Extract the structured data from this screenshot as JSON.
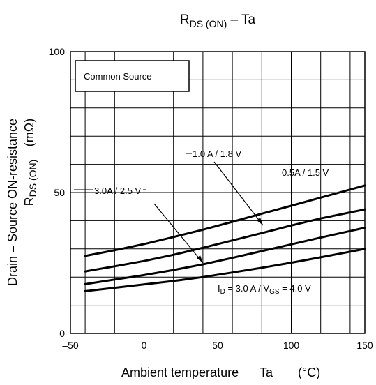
{
  "chart_data": {
    "type": "line",
    "title": {
      "main": "R",
      "sub": "DS (ON)",
      "rest": " – Ta"
    },
    "xlabel": {
      "text": "Ambient temperature",
      "symbol": "Ta",
      "unit": "(°C)"
    },
    "ylabel": {
      "line1": "Drain – Source ON-resistance",
      "line2_main": "R",
      "line2_sub": "DS (ON)",
      "line2_unit": "(mΩ)"
    },
    "xlim": [
      -50,
      150
    ],
    "ylim": [
      0,
      100
    ],
    "x_ticks": [
      -50,
      0,
      50,
      100,
      150
    ],
    "x_tick_labels": [
      "–50",
      "0",
      "50",
      "100",
      "150"
    ],
    "y_ticks": [
      0,
      50,
      100
    ],
    "y_tick_labels": [
      "0",
      "50",
      "100"
    ],
    "grid": true,
    "legend_box": "Common Source",
    "series": [
      {
        "name": "0.5A / 1.5 V",
        "x": [
          -40,
          -20,
          0,
          20,
          40,
          60,
          80,
          100,
          120,
          150
        ],
        "y": [
          27.5,
          29.5,
          31.7,
          34.2,
          36.8,
          39.6,
          42.5,
          45.3,
          48.2,
          52.5
        ]
      },
      {
        "name": "1.0 A / 1.8 V",
        "x": [
          -40,
          -20,
          0,
          20,
          40,
          60,
          80,
          100,
          120,
          150
        ],
        "y": [
          22,
          23.8,
          25.7,
          27.9,
          30.4,
          33,
          35.6,
          38.3,
          40.8,
          44
        ]
      },
      {
        "name": "3.0A / 2.5 V",
        "x": [
          -40,
          -20,
          0,
          20,
          40,
          60,
          80,
          100,
          120,
          150
        ],
        "y": [
          17.5,
          19.1,
          20.7,
          22.5,
          24.5,
          26.8,
          29.2,
          31.6,
          34,
          37.5
        ]
      },
      {
        "name": "ID = 3.0 A / VGS = 4.0 V",
        "x": [
          -40,
          -20,
          0,
          20,
          40,
          60,
          80,
          100,
          120,
          150
        ],
        "y": [
          15,
          16.2,
          17.4,
          18.6,
          20,
          21.6,
          23.3,
          25.1,
          27,
          30
        ]
      }
    ],
    "annotations": [
      {
        "text": "1.0 A / 1.8 V"
      },
      {
        "text": "0.5A / 1.5 V"
      },
      {
        "text": "3.0A / 2.5 V"
      },
      {
        "parts": [
          "I",
          "D",
          " = 3.0 A / V",
          "GS",
          " = 4.0 V"
        ]
      }
    ]
  }
}
